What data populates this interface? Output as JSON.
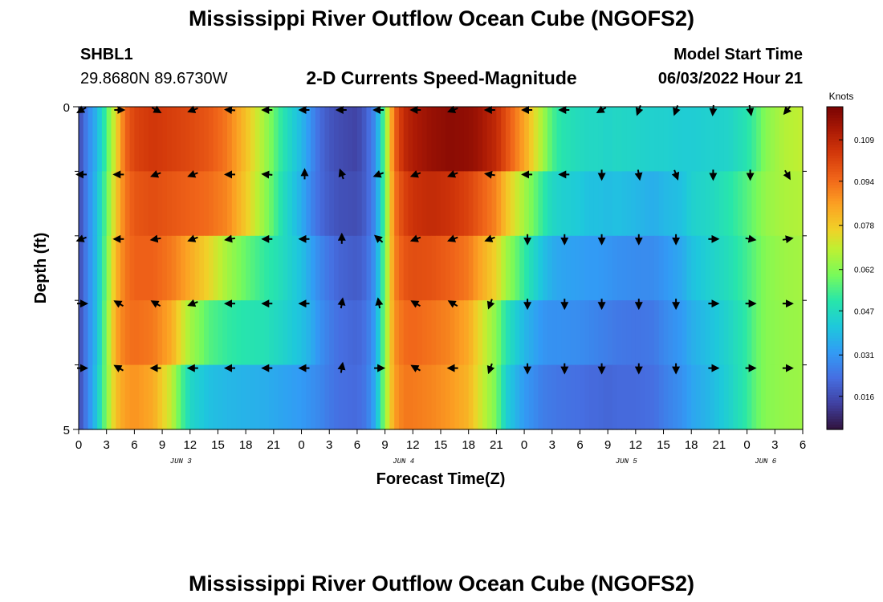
{
  "page": {
    "title": "Mississippi River Outflow Ocean Cube (NGOFS2)",
    "title_repeat": "Mississippi River Outflow Ocean Cube (NGOFS2)"
  },
  "station": {
    "id": "SHBL1",
    "coords": "29.8680N  89.6730W"
  },
  "model": {
    "start_label": "Model Start Time",
    "start_value": "06/03/2022 Hour 21"
  },
  "chart_data": {
    "type": "heatmap",
    "title": "2-D Currents Speed-Magnitude",
    "xlabel": "Forecast Time(Z)",
    "ylabel": "Depth (ft)",
    "x_hours_range": [
      0,
      78
    ],
    "x_tick_hours": [
      0,
      3,
      6,
      9,
      12,
      15,
      18,
      21,
      24,
      27,
      30,
      33,
      36,
      39,
      42,
      45,
      48,
      51,
      54,
      57,
      60,
      63,
      66,
      69,
      72,
      75,
      78
    ],
    "x_tick_labels": [
      "0",
      "3",
      "6",
      "9",
      "12",
      "15",
      "18",
      "21",
      "0",
      "3",
      "6",
      "9",
      "12",
      "15",
      "18",
      "21",
      "0",
      "3",
      "6",
      "9",
      "12",
      "15",
      "18",
      "21",
      "0",
      "3",
      "6"
    ],
    "date_labels": [
      {
        "text": "JUN 3",
        "hour": 11
      },
      {
        "text": "JUN 4",
        "hour": 35
      },
      {
        "text": "JUN 5",
        "hour": 59
      },
      {
        "text": "JUN 6",
        "hour": 74
      }
    ],
    "y_range": [
      0,
      5
    ],
    "y_tick_labels": [
      {
        "value": 0,
        "label": "0"
      },
      {
        "value": 5,
        "label": "5"
      }
    ],
    "y_minor_ticks": [
      1,
      2,
      3,
      4
    ],
    "depth_layers": 5,
    "colorbar": {
      "label": "Knots",
      "min": 0.004,
      "max": 0.121,
      "ticks": [
        "0.016",
        "0.031",
        "0.047",
        "0.062",
        "0.078",
        "0.094",
        "0.109"
      ],
      "tick_values": [
        0.016,
        0.031,
        0.047,
        0.062,
        0.078,
        0.094,
        0.109
      ]
    },
    "speed_series_note": "speed (knots) per forecast hour per depth layer (layer 0 = surface)",
    "speed_anchor_hours": [
      0,
      1,
      2,
      3,
      4,
      5,
      6,
      8,
      10,
      11,
      12,
      14,
      16,
      18,
      20,
      21,
      22,
      24,
      25,
      26,
      27,
      28,
      30,
      31,
      32,
      33,
      34,
      35,
      36,
      38,
      40,
      42,
      43,
      45,
      46,
      48,
      50,
      51,
      52,
      54,
      55,
      56,
      57,
      58,
      60,
      62,
      63,
      65,
      66,
      68,
      70,
      72,
      73,
      74,
      76,
      78
    ],
    "speed_layers": [
      [
        0.015,
        0.028,
        0.038,
        0.055,
        0.075,
        0.095,
        0.102,
        0.105,
        0.103,
        0.102,
        0.101,
        0.098,
        0.092,
        0.08,
        0.066,
        0.058,
        0.05,
        0.038,
        0.03,
        0.022,
        0.018,
        0.016,
        0.014,
        0.02,
        0.03,
        0.06,
        0.095,
        0.108,
        0.112,
        0.116,
        0.118,
        0.117,
        0.115,
        0.108,
        0.1,
        0.085,
        0.066,
        0.055,
        0.05,
        0.047,
        0.046,
        0.046,
        0.045,
        0.046,
        0.045,
        0.044,
        0.044,
        0.043,
        0.043,
        0.044,
        0.045,
        0.05,
        0.055,
        0.062,
        0.068,
        0.07
      ],
      [
        0.015,
        0.028,
        0.04,
        0.058,
        0.078,
        0.092,
        0.098,
        0.1,
        0.098,
        0.097,
        0.096,
        0.094,
        0.09,
        0.078,
        0.064,
        0.056,
        0.048,
        0.036,
        0.028,
        0.022,
        0.019,
        0.017,
        0.016,
        0.02,
        0.03,
        0.058,
        0.092,
        0.102,
        0.106,
        0.108,
        0.106,
        0.102,
        0.098,
        0.09,
        0.08,
        0.066,
        0.052,
        0.046,
        0.044,
        0.042,
        0.04,
        0.04,
        0.039,
        0.04,
        0.038,
        0.036,
        0.038,
        0.04,
        0.044,
        0.046,
        0.05,
        0.056,
        0.06,
        0.064,
        0.067,
        0.068
      ],
      [
        0.015,
        0.028,
        0.04,
        0.06,
        0.082,
        0.092,
        0.096,
        0.096,
        0.092,
        0.088,
        0.084,
        0.076,
        0.066,
        0.058,
        0.052,
        0.05,
        0.047,
        0.04,
        0.034,
        0.028,
        0.024,
        0.021,
        0.019,
        0.022,
        0.032,
        0.06,
        0.09,
        0.098,
        0.1,
        0.099,
        0.096,
        0.092,
        0.086,
        0.076,
        0.066,
        0.052,
        0.04,
        0.036,
        0.034,
        0.033,
        0.032,
        0.032,
        0.031,
        0.03,
        0.029,
        0.029,
        0.031,
        0.035,
        0.04,
        0.044,
        0.048,
        0.054,
        0.058,
        0.062,
        0.065,
        0.066
      ],
      [
        0.015,
        0.028,
        0.04,
        0.062,
        0.085,
        0.092,
        0.094,
        0.092,
        0.084,
        0.074,
        0.066,
        0.056,
        0.052,
        0.05,
        0.049,
        0.047,
        0.045,
        0.04,
        0.036,
        0.03,
        0.026,
        0.023,
        0.021,
        0.024,
        0.034,
        0.062,
        0.088,
        0.094,
        0.095,
        0.093,
        0.09,
        0.084,
        0.076,
        0.062,
        0.05,
        0.038,
        0.031,
        0.03,
        0.03,
        0.029,
        0.028,
        0.027,
        0.026,
        0.025,
        0.024,
        0.025,
        0.028,
        0.032,
        0.036,
        0.04,
        0.045,
        0.052,
        0.058,
        0.062,
        0.064,
        0.065
      ],
      [
        0.015,
        0.028,
        0.042,
        0.062,
        0.08,
        0.086,
        0.088,
        0.084,
        0.07,
        0.056,
        0.046,
        0.04,
        0.038,
        0.037,
        0.036,
        0.035,
        0.034,
        0.032,
        0.03,
        0.028,
        0.025,
        0.023,
        0.022,
        0.025,
        0.036,
        0.064,
        0.086,
        0.092,
        0.092,
        0.09,
        0.087,
        0.082,
        0.074,
        0.06,
        0.044,
        0.032,
        0.026,
        0.025,
        0.024,
        0.023,
        0.022,
        0.022,
        0.021,
        0.022,
        0.022,
        0.023,
        0.026,
        0.03,
        0.034,
        0.038,
        0.044,
        0.052,
        0.058,
        0.062,
        0.064,
        0.065
      ]
    ],
    "arrow_hours": [
      0,
      4,
      8,
      12,
      16,
      20,
      24,
      28,
      32,
      36,
      40,
      44,
      48,
      52,
      56,
      60,
      64,
      68,
      72,
      76
    ],
    "arrow_directions_deg": [
      [
        210,
        0,
        330,
        200,
        175,
        180,
        180,
        180,
        180,
        180,
        200,
        180,
        180,
        180,
        210,
        250,
        250,
        265,
        280,
        230
      ],
      [
        180,
        180,
        200,
        200,
        180,
        175,
        90,
        110,
        200,
        200,
        200,
        170,
        180,
        180,
        270,
        280,
        290,
        270,
        270,
        300
      ],
      [
        200,
        180,
        190,
        200,
        190,
        180,
        180,
        90,
        140,
        200,
        200,
        200,
        270,
        270,
        270,
        270,
        270,
        0,
        350,
        10
      ],
      [
        0,
        150,
        150,
        200,
        180,
        180,
        180,
        80,
        100,
        150,
        150,
        250,
        270,
        270,
        270,
        270,
        270,
        0,
        0,
        0
      ],
      [
        0,
        150,
        180,
        180,
        180,
        180,
        180,
        80,
        0,
        150,
        180,
        250,
        270,
        270,
        270,
        270,
        270,
        0,
        0,
        0
      ]
    ]
  }
}
